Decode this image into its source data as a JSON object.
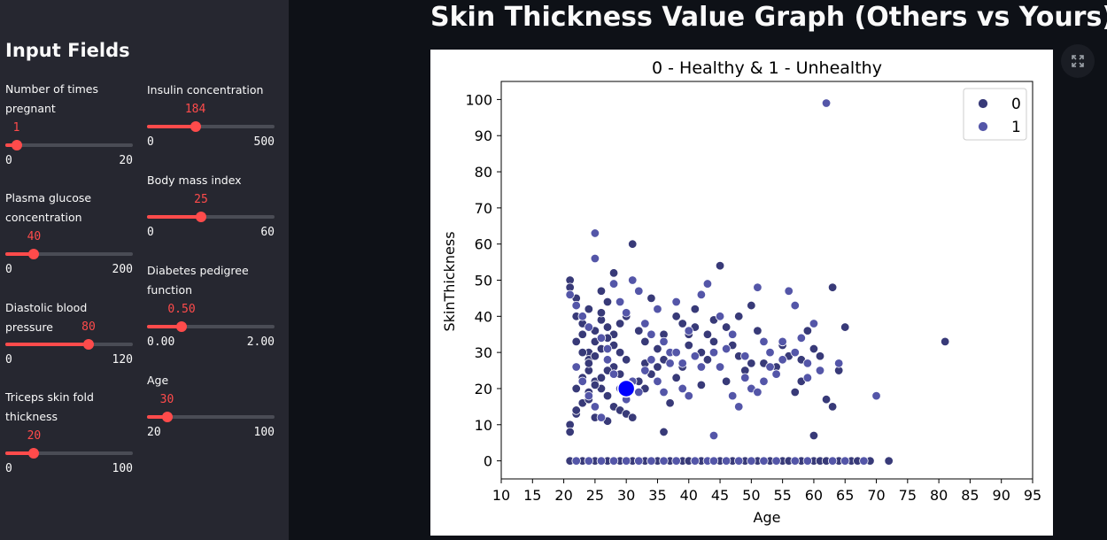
{
  "sidebar": {
    "title": "Input Fields",
    "sliders": [
      {
        "label": "Number of times pregnant",
        "value": "1",
        "min": "0",
        "max": "20",
        "level": 0.05
      },
      {
        "label": "Plasma glucose concentration",
        "value": "40",
        "min": "0",
        "max": "200",
        "level": 0.2
      },
      {
        "label": "Diastolic blood pressure",
        "value": "80",
        "min": "0",
        "max": "120",
        "level": 0.6667
      },
      {
        "label": "Triceps skin fold thickness",
        "value": "20",
        "min": "0",
        "max": "100",
        "level": 0.2
      },
      {
        "label": "Insulin concentration",
        "value": "184",
        "min": "0",
        "max": "500",
        "level": 0.368
      },
      {
        "label": "Body mass index",
        "value": "25",
        "min": "0",
        "max": "60",
        "level": 0.4167
      },
      {
        "label": "Diabetes pedigree function",
        "value": "0.50",
        "min": "0.00",
        "max": "2.00",
        "level": 0.25
      },
      {
        "label": "Age",
        "value": "30",
        "min": "20",
        "max": "100",
        "level": 0.125
      }
    ]
  },
  "main": {
    "heading": "Skin Thickness Value Graph (Others vs Yours)",
    "expand_icon": "expand-icon"
  },
  "colors": {
    "accent": "#ff4b4b",
    "class0": "#383a78",
    "class1": "#5456a8",
    "yours": "#0000ff"
  },
  "chart_data": {
    "type": "scatter",
    "title": "0 - Healthy & 1 - Unhealthy",
    "xlabel": "Age",
    "ylabel": "SkinThickness",
    "xlim": [
      10,
      95
    ],
    "ylim": [
      -5,
      105
    ],
    "xticks": [
      10,
      15,
      20,
      25,
      30,
      35,
      40,
      45,
      50,
      55,
      60,
      65,
      70,
      75,
      80,
      85,
      90,
      95
    ],
    "yticks": [
      0,
      10,
      20,
      30,
      40,
      50,
      60,
      70,
      80,
      90,
      100
    ],
    "legend": {
      "position": "top-right",
      "entries": [
        "0",
        "1"
      ]
    },
    "series": [
      {
        "name": "0",
        "points": [
          [
            21,
            50
          ],
          [
            21,
            48
          ],
          [
            22,
            45
          ],
          [
            22,
            40
          ],
          [
            23,
            38
          ],
          [
            23,
            35
          ],
          [
            24,
            42
          ],
          [
            24,
            30
          ],
          [
            24,
            28
          ],
          [
            25,
            33
          ],
          [
            25,
            36
          ],
          [
            26,
            39
          ],
          [
            26,
            41
          ],
          [
            27,
            44
          ],
          [
            27,
            37
          ],
          [
            28,
            35
          ],
          [
            28,
            32
          ],
          [
            29,
            30
          ],
          [
            29,
            38
          ],
          [
            30,
            40
          ],
          [
            31,
            60
          ],
          [
            32,
            36
          ],
          [
            33,
            33
          ],
          [
            33,
            27
          ],
          [
            34,
            45
          ],
          [
            35,
            31
          ],
          [
            36,
            35
          ],
          [
            37,
            30
          ],
          [
            38,
            40
          ],
          [
            39,
            38
          ],
          [
            40,
            35
          ],
          [
            41,
            42
          ],
          [
            42,
            30
          ],
          [
            43,
            28
          ],
          [
            44,
            33
          ],
          [
            45,
            54
          ],
          [
            46,
            37
          ],
          [
            47,
            32
          ],
          [
            48,
            29
          ],
          [
            49,
            25
          ],
          [
            50,
            43
          ],
          [
            51,
            36
          ],
          [
            52,
            27
          ],
          [
            53,
            30
          ],
          [
            54,
            26
          ],
          [
            56,
            29
          ],
          [
            57,
            19
          ],
          [
            58,
            28
          ],
          [
            59,
            36
          ],
          [
            60,
            31
          ],
          [
            61,
            29
          ],
          [
            62,
            17
          ],
          [
            63,
            15
          ],
          [
            63,
            48
          ],
          [
            65,
            37
          ],
          [
            60,
            7
          ],
          [
            81,
            33
          ],
          [
            36,
            8
          ],
          [
            28,
            52
          ],
          [
            26,
            47
          ],
          [
            22,
            33
          ],
          [
            23,
            30
          ],
          [
            24,
            25
          ],
          [
            25,
            22
          ],
          [
            26,
            20
          ],
          [
            27,
            18
          ],
          [
            28,
            15
          ],
          [
            29,
            14
          ],
          [
            30,
            13
          ],
          [
            31,
            12
          ],
          [
            22,
            20
          ],
          [
            23,
            23
          ],
          [
            24,
            27
          ],
          [
            25,
            29
          ],
          [
            26,
            31
          ],
          [
            27,
            34
          ],
          [
            28,
            26
          ],
          [
            29,
            24
          ],
          [
            30,
            28
          ],
          [
            32,
            22
          ],
          [
            21,
            10
          ],
          [
            22,
            13
          ],
          [
            23,
            16
          ],
          [
            24,
            19
          ],
          [
            25,
            21
          ],
          [
            26,
            23
          ],
          [
            27,
            25
          ],
          [
            33,
            20
          ],
          [
            34,
            24
          ],
          [
            35,
            26
          ],
          [
            36,
            28
          ],
          [
            37,
            16
          ],
          [
            38,
            23
          ],
          [
            39,
            26
          ],
          [
            40,
            32
          ],
          [
            41,
            37
          ],
          [
            42,
            21
          ],
          [
            43,
            35
          ],
          [
            44,
            39
          ],
          [
            46,
            22
          ],
          [
            48,
            40
          ],
          [
            50,
            27
          ],
          [
            55,
            32
          ],
          [
            58,
            22
          ],
          [
            64,
            25
          ],
          [
            21,
            8
          ],
          [
            25,
            12
          ],
          [
            27,
            11
          ],
          [
            22,
            14
          ],
          [
            24,
            17
          ],
          [
            21,
            0
          ],
          [
            22,
            0
          ],
          [
            23,
            0
          ],
          [
            24,
            0
          ],
          [
            25,
            0
          ],
          [
            26,
            0
          ],
          [
            27,
            0
          ],
          [
            28,
            0
          ],
          [
            29,
            0
          ],
          [
            30,
            0
          ],
          [
            31,
            0
          ],
          [
            32,
            0
          ],
          [
            33,
            0
          ],
          [
            34,
            0
          ],
          [
            35,
            0
          ],
          [
            36,
            0
          ],
          [
            37,
            0
          ],
          [
            38,
            0
          ],
          [
            39,
            0
          ],
          [
            40,
            0
          ],
          [
            41,
            0
          ],
          [
            42,
            0
          ],
          [
            43,
            0
          ],
          [
            45,
            0
          ],
          [
            46,
            0
          ],
          [
            47,
            0
          ],
          [
            49,
            0
          ],
          [
            51,
            0
          ],
          [
            52,
            0
          ],
          [
            53,
            0
          ],
          [
            55,
            0
          ],
          [
            56,
            0
          ],
          [
            58,
            0
          ],
          [
            60,
            0
          ],
          [
            61,
            0
          ],
          [
            62,
            0
          ],
          [
            64,
            0
          ],
          [
            66,
            0
          ],
          [
            67,
            0
          ],
          [
            69,
            0
          ],
          [
            72,
            0
          ]
        ]
      },
      {
        "name": "1",
        "points": [
          [
            21,
            46
          ],
          [
            22,
            43
          ],
          [
            23,
            40
          ],
          [
            24,
            37
          ],
          [
            25,
            63
          ],
          [
            25,
            56
          ],
          [
            26,
            34
          ],
          [
            27,
            31
          ],
          [
            28,
            49
          ],
          [
            29,
            44
          ],
          [
            30,
            41
          ],
          [
            31,
            50
          ],
          [
            32,
            47
          ],
          [
            33,
            38
          ],
          [
            34,
            35
          ],
          [
            35,
            42
          ],
          [
            36,
            33
          ],
          [
            37,
            30
          ],
          [
            38,
            44
          ],
          [
            39,
            27
          ],
          [
            40,
            36
          ],
          [
            41,
            29
          ],
          [
            42,
            46
          ],
          [
            43,
            49
          ],
          [
            44,
            7
          ],
          [
            45,
            40
          ],
          [
            46,
            31
          ],
          [
            47,
            18
          ],
          [
            48,
            15
          ],
          [
            49,
            23
          ],
          [
            50,
            20
          ],
          [
            51,
            48
          ],
          [
            52,
            33
          ],
          [
            53,
            26
          ],
          [
            54,
            24
          ],
          [
            55,
            33
          ],
          [
            56,
            47
          ],
          [
            57,
            43
          ],
          [
            58,
            34
          ],
          [
            59,
            23
          ],
          [
            60,
            38
          ],
          [
            61,
            25
          ],
          [
            62,
            99
          ],
          [
            64,
            27
          ],
          [
            70,
            18
          ],
          [
            22,
            26
          ],
          [
            23,
            22
          ],
          [
            24,
            18
          ],
          [
            25,
            15
          ],
          [
            26,
            12
          ],
          [
            27,
            28
          ],
          [
            28,
            24
          ],
          [
            29,
            20
          ],
          [
            30,
            17
          ],
          [
            31,
            22
          ],
          [
            32,
            19
          ],
          [
            33,
            25
          ],
          [
            34,
            28
          ],
          [
            35,
            22
          ],
          [
            36,
            19
          ],
          [
            37,
            27
          ],
          [
            38,
            30
          ],
          [
            39,
            20
          ],
          [
            40,
            18
          ],
          [
            42,
            26
          ],
          [
            44,
            30
          ],
          [
            45,
            26
          ],
          [
            47,
            35
          ],
          [
            49,
            29
          ],
          [
            51,
            19
          ],
          [
            52,
            22
          ],
          [
            53,
            30
          ],
          [
            55,
            28
          ],
          [
            57,
            30
          ],
          [
            59,
            27
          ],
          [
            22,
            0
          ],
          [
            24,
            0
          ],
          [
            26,
            0
          ],
          [
            28,
            0
          ],
          [
            30,
            0
          ],
          [
            32,
            0
          ],
          [
            34,
            0
          ],
          [
            36,
            0
          ],
          [
            38,
            0
          ],
          [
            41,
            0
          ],
          [
            43,
            0
          ],
          [
            44,
            0
          ],
          [
            46,
            0
          ],
          [
            48,
            0
          ],
          [
            50,
            0
          ],
          [
            52,
            0
          ],
          [
            54,
            0
          ],
          [
            57,
            0
          ],
          [
            59,
            0
          ],
          [
            63,
            0
          ],
          [
            65,
            0
          ],
          [
            68,
            0
          ]
        ]
      }
    ],
    "yours": {
      "x": 30,
      "y": 20
    }
  }
}
